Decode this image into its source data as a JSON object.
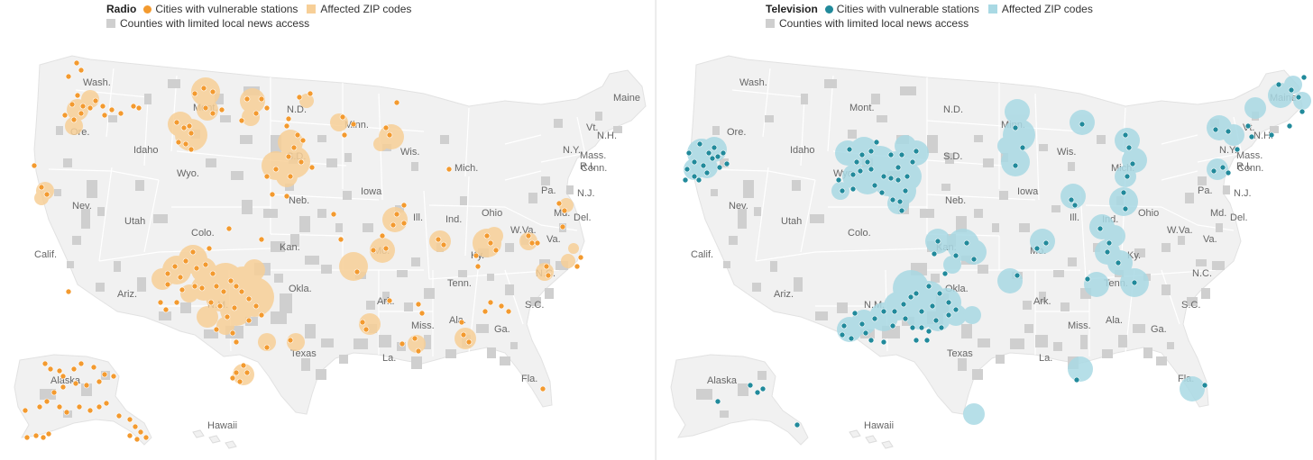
{
  "colors": {
    "land": "#f1f1f1",
    "border": "#ffffff",
    "limited_counties": "#cfcfcf",
    "radio_dot": "#f39a2f",
    "radio_zip": "#f7cf97",
    "tv_dot": "#218a9b",
    "tv_zip": "#a9d9e4"
  },
  "radio": {
    "title": "Radio",
    "legend_cities": "Cities with vulnerable stations",
    "legend_zip": "Affected ZIP codes",
    "legend_counties": "Counties with limited local news access",
    "state_labels": [
      "Wash.",
      "Ore.",
      "Idaho",
      "Mont.",
      "N.D.",
      "Minn.",
      "Wis.",
      "Mich.",
      "Maine",
      "Vt.",
      "N.H.",
      "N.Y.",
      "Mass.",
      "R.I.",
      "Conn.",
      "Pa.",
      "N.J.",
      "Md.",
      "Del.",
      "W.Va.",
      "Va.",
      "Ohio",
      "Ind.",
      "Ill.",
      "Iowa",
      "S.D.",
      "Wyo.",
      "Nev.",
      "Calif.",
      "Utah",
      "Colo.",
      "Neb.",
      "Kan.",
      "Mo.",
      "Ky.",
      "N.C.",
      "Tenn.",
      "Okla.",
      "Ariz.",
      "N.M.",
      "Ark.",
      "Miss.",
      "Ala.",
      "Ga.",
      "S.C.",
      "Texas",
      "La.",
      "Fla.",
      "Alaska",
      "Hawaii"
    ]
  },
  "tv": {
    "title": "Television",
    "legend_cities": "Cities with vulnerable stations",
    "legend_zip": "Affected ZIP codes",
    "legend_counties": "Counties with limited local news access",
    "state_labels": [
      "Wash.",
      "Ore.",
      "Idaho",
      "Mont.",
      "N.D.",
      "Minn.",
      "Wis.",
      "Mich.",
      "Maine",
      "Vt.",
      "N.H.",
      "N.Y.",
      "Mass.",
      "R.I.",
      "Conn.",
      "Pa.",
      "N.J.",
      "Md.",
      "Del.",
      "W.Va.",
      "Va.",
      "Ohio",
      "Ind.",
      "Ill.",
      "Iowa",
      "S.D.",
      "Wyo.",
      "Nev.",
      "Calif.",
      "Utah",
      "Colo.",
      "Neb.",
      "Kan.",
      "Mo.",
      "Ky.",
      "N.C.",
      "Tenn.",
      "Okla.",
      "Ariz.",
      "N.M.",
      "Ark.",
      "Miss.",
      "Ala.",
      "Ga.",
      "S.C.",
      "Texas",
      "La.",
      "Fla.",
      "Alaska",
      "Hawaii"
    ]
  }
}
